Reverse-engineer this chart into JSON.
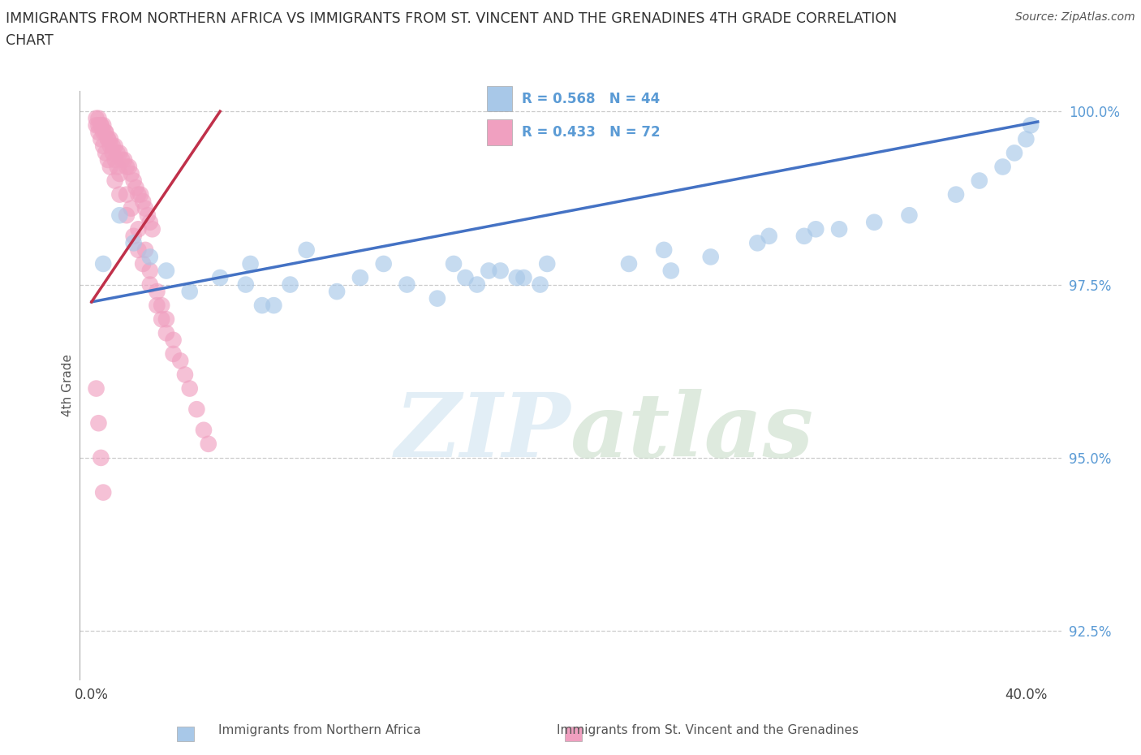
{
  "title_line1": "IMMIGRANTS FROM NORTHERN AFRICA VS IMMIGRANTS FROM ST. VINCENT AND THE GRENADINES 4TH GRADE CORRELATION",
  "title_line2": "CHART",
  "source": "Source: ZipAtlas.com",
  "xlabel_blue": "Immigrants from Northern Africa",
  "xlabel_pink": "Immigrants from St. Vincent and the Grenadines",
  "ylabel": "4th Grade",
  "R_blue": 0.568,
  "N_blue": 44,
  "R_pink": 0.433,
  "N_pink": 72,
  "xlim": [
    -0.005,
    0.415
  ],
  "ylim": [
    0.918,
    1.003
  ],
  "yticks": [
    0.925,
    0.95,
    0.975,
    1.0
  ],
  "ytick_labels": [
    "92.5%",
    "95.0%",
    "97.5%",
    "100.0%"
  ],
  "xticks": [
    0.0,
    0.4
  ],
  "xtick_labels": [
    "0.0%",
    "40.0%"
  ],
  "color_blue": "#a8c8e8",
  "color_pink": "#f0a0c0",
  "trendline_blue": "#4472c4",
  "trendline_pink": "#c0304a",
  "background": "#ffffff",
  "blue_trend_x": [
    0.0,
    0.405
  ],
  "blue_trend_y": [
    0.9725,
    0.9985
  ],
  "pink_trend_x": [
    0.0,
    0.055
  ],
  "pink_trend_y": [
    0.9725,
    1.0
  ],
  "blue_points_x": [
    0.005,
    0.012,
    0.018,
    0.025,
    0.032,
    0.042,
    0.055,
    0.068,
    0.078,
    0.085,
    0.092,
    0.105,
    0.115,
    0.125,
    0.135,
    0.148,
    0.16,
    0.17,
    0.182,
    0.192,
    0.155,
    0.165,
    0.175,
    0.185,
    0.195,
    0.248,
    0.265,
    0.285,
    0.305,
    0.32,
    0.335,
    0.35,
    0.37,
    0.38,
    0.39,
    0.395,
    0.4,
    0.402,
    0.066,
    0.073,
    0.23,
    0.245,
    0.29,
    0.31
  ],
  "blue_points_y": [
    0.978,
    0.985,
    0.981,
    0.979,
    0.977,
    0.974,
    0.976,
    0.978,
    0.972,
    0.975,
    0.98,
    0.974,
    0.976,
    0.978,
    0.975,
    0.973,
    0.976,
    0.977,
    0.976,
    0.975,
    0.978,
    0.975,
    0.977,
    0.976,
    0.978,
    0.977,
    0.979,
    0.981,
    0.982,
    0.983,
    0.984,
    0.985,
    0.988,
    0.99,
    0.992,
    0.994,
    0.996,
    0.998,
    0.975,
    0.972,
    0.978,
    0.98,
    0.982,
    0.983
  ],
  "pink_points_x": [
    0.002,
    0.003,
    0.004,
    0.005,
    0.006,
    0.007,
    0.008,
    0.009,
    0.01,
    0.011,
    0.012,
    0.013,
    0.014,
    0.015,
    0.016,
    0.017,
    0.018,
    0.019,
    0.02,
    0.021,
    0.022,
    0.023,
    0.024,
    0.025,
    0.026,
    0.003,
    0.004,
    0.005,
    0.006,
    0.007,
    0.008,
    0.009,
    0.01,
    0.011,
    0.012,
    0.015,
    0.017,
    0.02,
    0.023,
    0.025,
    0.028,
    0.03,
    0.032,
    0.035,
    0.038,
    0.04,
    0.042,
    0.045,
    0.048,
    0.05,
    0.002,
    0.003,
    0.004,
    0.005,
    0.006,
    0.007,
    0.008,
    0.01,
    0.012,
    0.015,
    0.018,
    0.02,
    0.022,
    0.025,
    0.028,
    0.03,
    0.032,
    0.035,
    0.002,
    0.003,
    0.004,
    0.005
  ],
  "pink_points_y": [
    0.999,
    0.998,
    0.998,
    0.997,
    0.997,
    0.996,
    0.996,
    0.995,
    0.995,
    0.994,
    0.994,
    0.993,
    0.993,
    0.992,
    0.992,
    0.991,
    0.99,
    0.989,
    0.988,
    0.988,
    0.987,
    0.986,
    0.985,
    0.984,
    0.983,
    0.999,
    0.998,
    0.998,
    0.997,
    0.996,
    0.995,
    0.994,
    0.993,
    0.992,
    0.991,
    0.988,
    0.986,
    0.983,
    0.98,
    0.977,
    0.974,
    0.972,
    0.97,
    0.967,
    0.964,
    0.962,
    0.96,
    0.957,
    0.954,
    0.952,
    0.998,
    0.997,
    0.996,
    0.995,
    0.994,
    0.993,
    0.992,
    0.99,
    0.988,
    0.985,
    0.982,
    0.98,
    0.978,
    0.975,
    0.972,
    0.97,
    0.968,
    0.965,
    0.96,
    0.955,
    0.95,
    0.945
  ]
}
